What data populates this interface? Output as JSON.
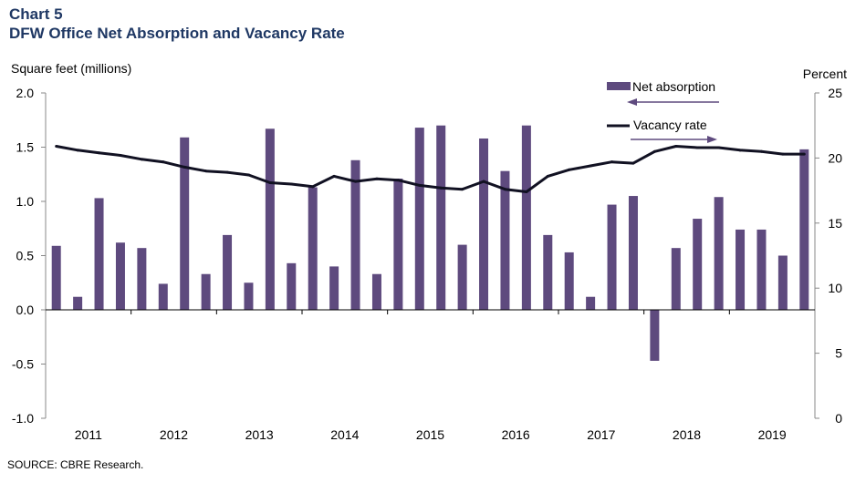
{
  "header": {
    "chart_label": "Chart 5",
    "title": "DFW Office Net Absorption and Vacancy Rate"
  },
  "footer": {
    "source": "SOURCE: CBRE Research."
  },
  "colors": {
    "bar": "#5e4a7e",
    "line": "#111122",
    "title": "#1f3864"
  },
  "chart_data": {
    "type": "bar",
    "title": "DFW Office Net Absorption and Vacancy Rate",
    "ylabel": "Square feet (millions)",
    "y2label": "Percent",
    "ylim": [
      -1.0,
      2.0
    ],
    "y2lim": [
      0,
      25
    ],
    "yticks": [
      "2.0",
      "1.5",
      "1.0",
      "0.5",
      "0.0",
      "-0.5",
      "-1.0"
    ],
    "y2ticks": [
      "25",
      "20",
      "15",
      "10",
      "5",
      "0"
    ],
    "year_labels": [
      "2011",
      "2012",
      "2013",
      "2014",
      "2015",
      "2016",
      "2017",
      "2018",
      "2019"
    ],
    "grid": false,
    "legend": [
      {
        "name": "Net absorption",
        "arrow": "left"
      },
      {
        "name": "Vacancy rate",
        "arrow": "right"
      }
    ],
    "series": [
      {
        "name": "Net absorption",
        "type": "bar",
        "axis": "left",
        "values": [
          0.59,
          0.12,
          1.03,
          0.62,
          0.57,
          0.24,
          1.59,
          0.33,
          0.69,
          0.25,
          1.67,
          0.43,
          1.13,
          0.4,
          1.38,
          0.33,
          1.21,
          1.68,
          1.7,
          0.6,
          1.58,
          1.28,
          1.7,
          0.69,
          0.53,
          0.12,
          0.97,
          1.05,
          -0.47,
          0.57,
          0.84,
          1.04,
          0.74,
          0.74,
          0.5,
          1.48
        ]
      },
      {
        "name": "Vacancy rate",
        "type": "line",
        "axis": "right",
        "values": [
          20.9,
          20.6,
          20.4,
          20.2,
          19.9,
          19.7,
          19.3,
          19.0,
          18.9,
          18.7,
          18.1,
          18.0,
          17.8,
          18.6,
          18.2,
          18.4,
          18.3,
          17.9,
          17.7,
          17.6,
          18.2,
          17.6,
          17.4,
          18.6,
          19.1,
          19.4,
          19.7,
          19.6,
          20.5,
          20.9,
          20.8,
          20.8,
          20.6,
          20.5,
          20.3,
          20.3
        ]
      }
    ]
  }
}
